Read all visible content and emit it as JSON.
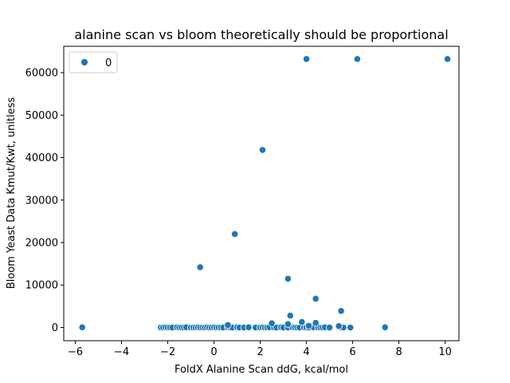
{
  "chart_data": {
    "type": "scatter",
    "title": "alanine scan vs bloom theoretically should be proportional",
    "xlabel": "FoldX Alanine Scan ddG, kcal/mol",
    "ylabel": "Bloom Yeast Data Kmut/Kwt, unitless",
    "xlim": [
      -6.5,
      10.6
    ],
    "ylim": [
      -3100,
      66200
    ],
    "xticks": [
      -6,
      -4,
      -2,
      0,
      2,
      4,
      6,
      8,
      10
    ],
    "yticks": [
      0,
      10000,
      20000,
      30000,
      40000,
      50000,
      60000
    ],
    "grid": false,
    "legend": {
      "placement": "top-left",
      "entries": [
        "0"
      ]
    },
    "series": [
      {
        "name": "0",
        "color": "#1f77b4",
        "points": [
          [
            -5.7,
            50
          ],
          [
            -2.3,
            0
          ],
          [
            -2.2,
            0
          ],
          [
            -2.1,
            50
          ],
          [
            -2.0,
            0
          ],
          [
            -1.9,
            0
          ],
          [
            -1.8,
            0
          ],
          [
            -1.6,
            50
          ],
          [
            -1.5,
            0
          ],
          [
            -1.4,
            0
          ],
          [
            -1.3,
            0
          ],
          [
            -1.2,
            50
          ],
          [
            -1.0,
            0
          ],
          [
            -0.9,
            0
          ],
          [
            -0.8,
            0
          ],
          [
            -0.7,
            50
          ],
          [
            -0.6,
            0
          ],
          [
            -0.5,
            0
          ],
          [
            -0.4,
            0
          ],
          [
            -0.3,
            50
          ],
          [
            -0.2,
            0
          ],
          [
            -0.1,
            0
          ],
          [
            0.0,
            50
          ],
          [
            0.1,
            0
          ],
          [
            0.2,
            0
          ],
          [
            0.3,
            0
          ],
          [
            0.4,
            0
          ],
          [
            0.6,
            50
          ],
          [
            0.7,
            0
          ],
          [
            0.8,
            0
          ],
          [
            1.0,
            50
          ],
          [
            1.1,
            0
          ],
          [
            1.3,
            0
          ],
          [
            1.5,
            50
          ],
          [
            1.8,
            0
          ],
          [
            2.0,
            0
          ],
          [
            2.1,
            50
          ],
          [
            2.2,
            0
          ],
          [
            2.3,
            0
          ],
          [
            2.4,
            50
          ],
          [
            2.6,
            0
          ],
          [
            2.7,
            0
          ],
          [
            2.9,
            50
          ],
          [
            3.0,
            0
          ],
          [
            3.2,
            0
          ],
          [
            3.4,
            50
          ],
          [
            3.5,
            0
          ],
          [
            3.6,
            0
          ],
          [
            3.7,
            0
          ],
          [
            3.9,
            50
          ],
          [
            4.0,
            0
          ],
          [
            4.1,
            0
          ],
          [
            4.3,
            50
          ],
          [
            4.5,
            0
          ],
          [
            4.6,
            0
          ],
          [
            4.7,
            0
          ],
          [
            4.8,
            50
          ],
          [
            5.0,
            0
          ],
          [
            5.5,
            0
          ],
          [
            5.6,
            0
          ],
          [
            5.9,
            0
          ],
          [
            7.4,
            50
          ],
          [
            0.6,
            600
          ],
          [
            2.5,
            1000
          ],
          [
            3.2,
            800
          ],
          [
            3.3,
            2800
          ],
          [
            3.8,
            1300
          ],
          [
            4.1,
            400
          ],
          [
            4.4,
            1100
          ],
          [
            5.4,
            350
          ],
          [
            4.4,
            6800
          ],
          [
            5.5,
            3900
          ],
          [
            -0.6,
            14200
          ],
          [
            3.2,
            11500
          ],
          [
            0.9,
            22000
          ],
          [
            2.1,
            41800
          ],
          [
            4.0,
            63200
          ],
          [
            6.2,
            63200
          ],
          [
            10.1,
            63200
          ]
        ]
      }
    ]
  }
}
